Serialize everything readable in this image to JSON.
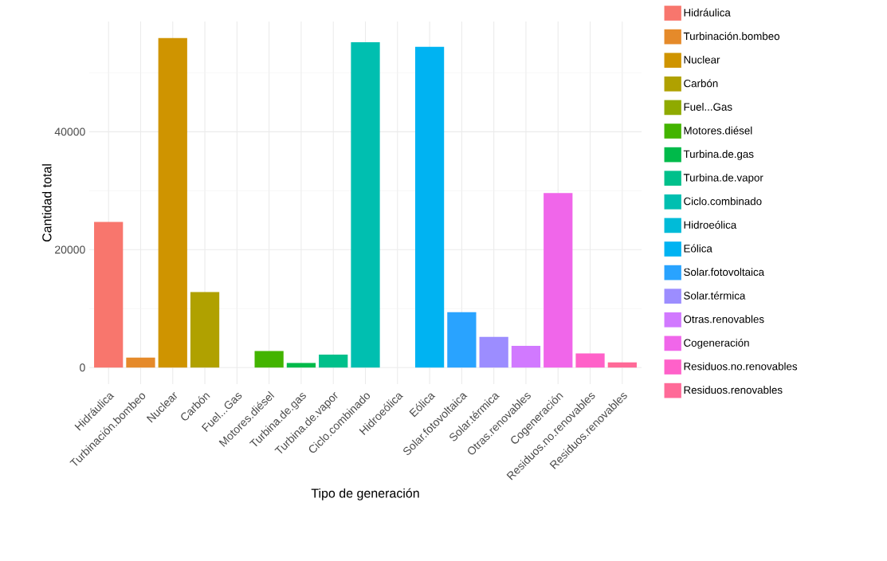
{
  "chart_data": {
    "type": "bar",
    "xlabel": "Tipo de generación",
    "ylabel": "Cantidad total",
    "categories": [
      "Hidráulica",
      "Turbinación.bombeo",
      "Nuclear",
      "Carbón",
      "Fuel...Gas",
      "Motores.diésel",
      "Turbina.de.gas",
      "Turbina.de.vapor",
      "Ciclo.combinado",
      "Hidroeólica",
      "Eólica",
      "Solar.fotovoltaica",
      "Solar.térmica",
      "Otras.renovables",
      "Cogeneración",
      "Residuos.no.renovables",
      "Residuos.renovables"
    ],
    "series": [
      {
        "name": "Hidráulica",
        "color": "#F8766D",
        "values": [
          24700,
          null,
          null,
          null,
          null,
          null,
          null,
          null,
          null,
          null,
          null,
          null,
          null,
          null,
          null,
          null,
          null
        ]
      },
      {
        "name": "Turbinación.bombeo",
        "color": "#E58A2A",
        "values": [
          null,
          1700,
          null,
          null,
          null,
          null,
          null,
          null,
          null,
          null,
          null,
          null,
          null,
          null,
          null,
          null,
          null
        ]
      },
      {
        "name": "Nuclear",
        "color": "#CF9400",
        "values": [
          null,
          null,
          55900,
          null,
          null,
          null,
          null,
          null,
          null,
          null,
          null,
          null,
          null,
          null,
          null,
          null,
          null
        ]
      },
      {
        "name": "Carbón",
        "color": "#B0A100",
        "values": [
          null,
          null,
          null,
          12800,
          null,
          null,
          null,
          null,
          null,
          null,
          null,
          null,
          null,
          null,
          null,
          null,
          null
        ]
      },
      {
        "name": "Fuel...Gas",
        "color": "#8FAA00",
        "values": [
          null,
          null,
          null,
          null,
          0,
          null,
          null,
          null,
          null,
          null,
          null,
          null,
          null,
          null,
          null,
          null,
          null
        ]
      },
      {
        "name": "Motores.diésel",
        "color": "#43B400",
        "values": [
          null,
          null,
          null,
          null,
          null,
          2800,
          null,
          null,
          null,
          null,
          null,
          null,
          null,
          null,
          null,
          null,
          null
        ]
      },
      {
        "name": "Turbina.de.gas",
        "color": "#00BA4A",
        "values": [
          null,
          null,
          null,
          null,
          null,
          null,
          800,
          null,
          null,
          null,
          null,
          null,
          null,
          null,
          null,
          null,
          null
        ]
      },
      {
        "name": "Turbina.de.vapor",
        "color": "#00C08B",
        "values": [
          null,
          null,
          null,
          null,
          null,
          null,
          null,
          2200,
          null,
          null,
          null,
          null,
          null,
          null,
          null,
          null,
          null
        ]
      },
      {
        "name": "Ciclo.combinado",
        "color": "#00BFB0",
        "values": [
          null,
          null,
          null,
          null,
          null,
          null,
          null,
          null,
          55200,
          null,
          null,
          null,
          null,
          null,
          null,
          null,
          null
        ]
      },
      {
        "name": "Hidroeólica",
        "color": "#00BBD8",
        "values": [
          null,
          null,
          null,
          null,
          null,
          null,
          null,
          null,
          null,
          0,
          null,
          null,
          null,
          null,
          null,
          null,
          null
        ]
      },
      {
        "name": "Eólica",
        "color": "#00B3F2",
        "values": [
          null,
          null,
          null,
          null,
          null,
          null,
          null,
          null,
          null,
          null,
          54400,
          null,
          null,
          null,
          null,
          null,
          null
        ]
      },
      {
        "name": "Solar.fotovoltaica",
        "color": "#29A3FF",
        "values": [
          null,
          null,
          null,
          null,
          null,
          null,
          null,
          null,
          null,
          null,
          null,
          9400,
          null,
          null,
          null,
          null,
          null
        ]
      },
      {
        "name": "Solar.térmica",
        "color": "#9C8DFF",
        "values": [
          null,
          null,
          null,
          null,
          null,
          null,
          null,
          null,
          null,
          null,
          null,
          null,
          5200,
          null,
          null,
          null,
          null
        ]
      },
      {
        "name": "Otras.renovables",
        "color": "#D179FF",
        "values": [
          null,
          null,
          null,
          null,
          null,
          null,
          null,
          null,
          null,
          null,
          null,
          null,
          null,
          3700,
          null,
          null,
          null
        ]
      },
      {
        "name": "Cogeneración",
        "color": "#F066EA",
        "values": [
          null,
          null,
          null,
          null,
          null,
          null,
          null,
          null,
          null,
          null,
          null,
          null,
          null,
          null,
          29600,
          null,
          null
        ]
      },
      {
        "name": "Residuos.no.renovables",
        "color": "#FF61C9",
        "values": [
          null,
          null,
          null,
          null,
          null,
          null,
          null,
          null,
          null,
          null,
          null,
          null,
          null,
          null,
          null,
          2400,
          null
        ]
      },
      {
        "name": "Residuos.renovables",
        "color": "#FF6A98",
        "values": [
          null,
          null,
          null,
          null,
          null,
          null,
          null,
          null,
          null,
          null,
          null,
          null,
          null,
          null,
          null,
          null,
          900
        ]
      }
    ],
    "ylim": [
      -2800,
      58700
    ],
    "yticks": [
      0,
      20000,
      40000
    ],
    "grid": true,
    "legend": "right"
  }
}
